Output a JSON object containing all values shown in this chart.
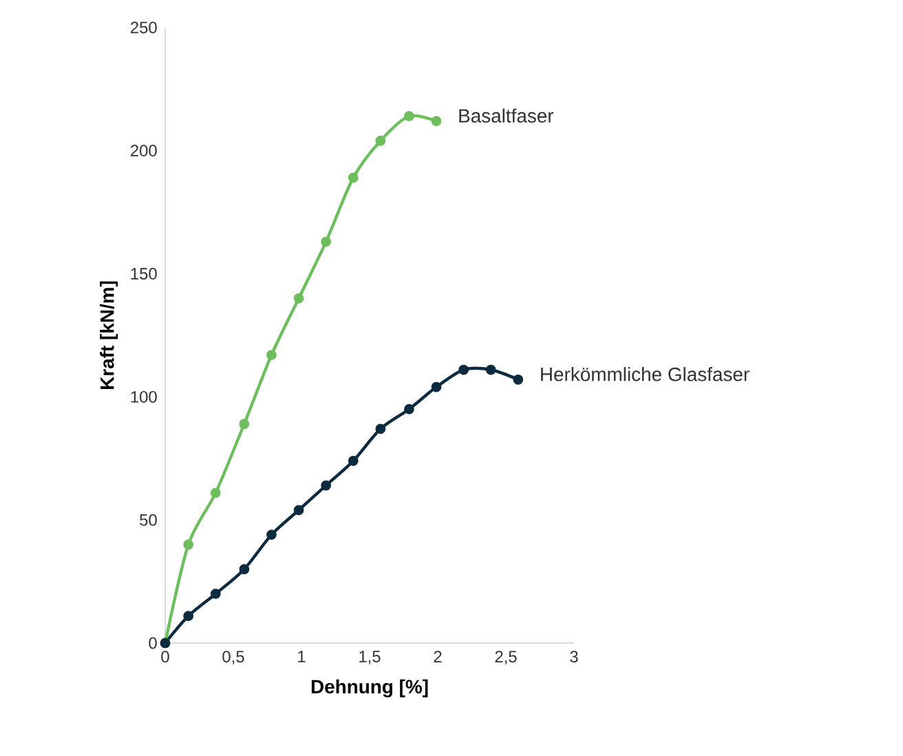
{
  "chart_data": {
    "type": "line",
    "xlabel": "Dehnung [%]",
    "ylabel": "Kraft [kN/m]",
    "xlim": [
      0,
      3
    ],
    "ylim": [
      0,
      250
    ],
    "xticks": [
      0,
      {
        "value": 0.5,
        "label": "0,5"
      },
      1,
      {
        "value": 1.5,
        "label": "1,5"
      },
      2,
      {
        "value": 2.5,
        "label": "2,5"
      },
      3
    ],
    "yticks": [
      0,
      50,
      100,
      150,
      200,
      250
    ],
    "grid": false,
    "marker": "circle",
    "line_style": "solid",
    "series": [
      {
        "name": "Basaltfaser",
        "color": "#6cbf5c",
        "x": [
          0,
          0.17,
          0.37,
          0.58,
          0.78,
          0.98,
          1.18,
          1.38,
          1.58,
          1.79,
          1.99
        ],
        "values": [
          0,
          40,
          61,
          89,
          117,
          140,
          163,
          189,
          204,
          214,
          212
        ]
      },
      {
        "name": "Herkömmliche Glasfaser",
        "color": "#0d2b3e",
        "x": [
          0,
          0.17,
          0.37,
          0.58,
          0.78,
          0.98,
          1.18,
          1.38,
          1.58,
          1.79,
          1.99,
          2.19,
          2.39,
          2.59
        ],
        "values": [
          0,
          11,
          20,
          30,
          44,
          54,
          64,
          74,
          87,
          95,
          104,
          111,
          111,
          107
        ]
      }
    ]
  }
}
